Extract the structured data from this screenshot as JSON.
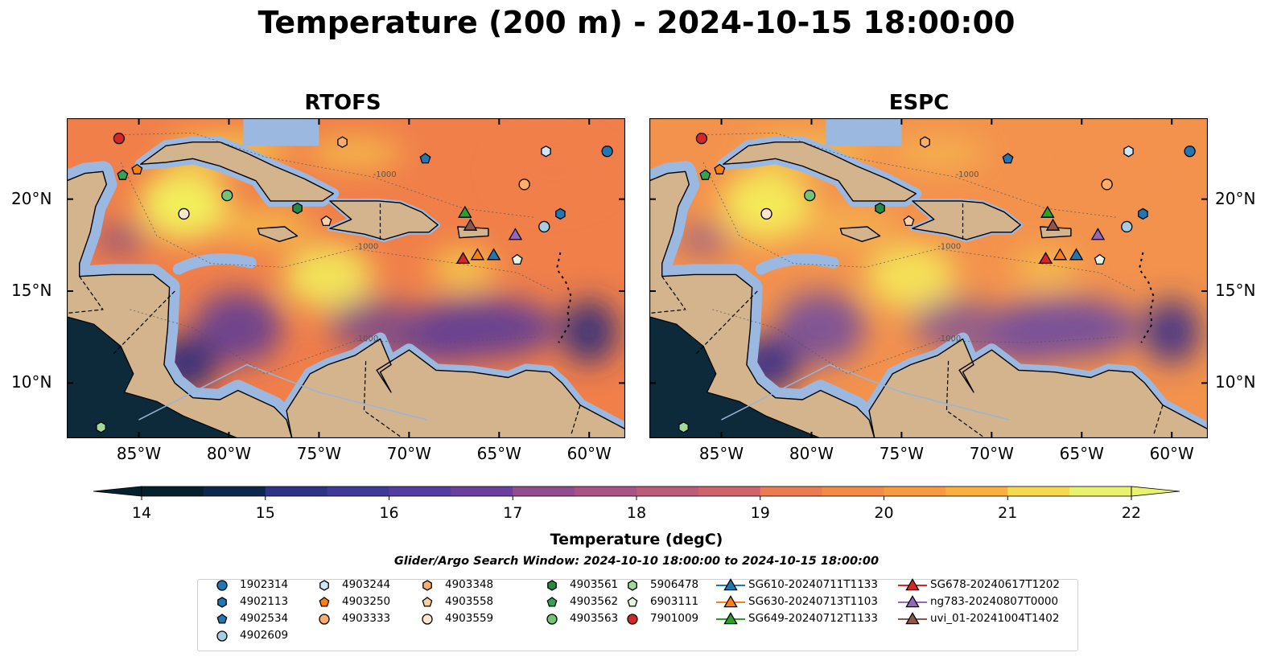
{
  "title": "Temperature (200 m) - 2024-10-15 18:00:00",
  "panels": [
    {
      "title": "RTOFS",
      "palette": {
        "base": "#f07f4a",
        "warm": "#f6d64a",
        "hot": "#f2f45c",
        "cool": "#5b3b98",
        "cold": "#2f2b7a"
      }
    },
    {
      "title": "ESPC",
      "palette": {
        "base": "#f3924d",
        "warm": "#f5c34e",
        "hot": "#f4ee5a",
        "cool": "#6d4aa0",
        "cold": "#3a3088"
      }
    }
  ],
  "map": {
    "land_color": "#d3b48c",
    "shelf_color": "#9bb8e0",
    "pacific_color": "#0d2a3a",
    "lon_labels": [
      "85°W",
      "80°W",
      "75°W",
      "70°W",
      "65°W",
      "60°W"
    ],
    "lat_labels": [
      "20°N",
      "15°N",
      "10°N"
    ],
    "contour_label": "-1000"
  },
  "colorbar": {
    "title": "Temperature (degC)",
    "ticks": [
      "14",
      "15",
      "16",
      "17",
      "18",
      "19",
      "20",
      "21",
      "22"
    ],
    "colors": [
      "#06202e",
      "#0d2650",
      "#1f2c6e",
      "#2e3388",
      "#3e3a98",
      "#533da2",
      "#6a3f9e",
      "#7f4699",
      "#934d8f",
      "#a85385",
      "#bd5b7a",
      "#d0626c",
      "#de6f5d",
      "#ea7c50",
      "#f38a45",
      "#f89b3e",
      "#faaf3e",
      "#fbc544",
      "#f7d94e",
      "#e8f26a"
    ]
  },
  "colorbar_title": "Temperature (degC)",
  "search_window": "Glider/Argo Search Window: 2024-10-10 18:00:00 to 2024-10-15 18:00:00",
  "platforms": [
    {
      "label": "1902314",
      "marker": "circle",
      "color": "#1f77b4",
      "lon": -59.0,
      "lat": 22.6
    },
    {
      "label": "4902113",
      "marker": "hexagon",
      "color": "#1f77b4",
      "lon": -61.6,
      "lat": 19.2
    },
    {
      "label": "4902534",
      "marker": "pentagon",
      "color": "#1f77b4",
      "lon": -69.1,
      "lat": 22.2
    },
    {
      "label": "4902609",
      "marker": "circle",
      "color": "#a6cee3",
      "lon": -62.5,
      "lat": 18.5
    },
    {
      "label": "4903244",
      "marker": "hexagon",
      "color": "#cfe6f7",
      "lon": -62.4,
      "lat": 22.6
    },
    {
      "label": "4903250",
      "marker": "pentagon",
      "color": "#ff7f0e",
      "lon": -85.1,
      "lat": 21.6
    },
    {
      "label": "4903333",
      "marker": "circle",
      "color": "#fdae6b",
      "lon": -63.6,
      "lat": 20.8
    },
    {
      "label": "4903348",
      "marker": "hexagon",
      "color": "#fdae6b",
      "lon": -73.7,
      "lat": 23.1
    },
    {
      "label": "4903558",
      "marker": "pentagon",
      "color": "#fdd0a2",
      "lon": -74.6,
      "lat": 18.8
    },
    {
      "label": "4903559",
      "marker": "circle",
      "color": "#fee6ce",
      "lon": -82.5,
      "lat": 19.2
    },
    {
      "label": "4903561",
      "marker": "hexagon",
      "color": "#238b45",
      "lon": -76.2,
      "lat": 19.5
    },
    {
      "label": "4903562",
      "marker": "pentagon",
      "color": "#31a354",
      "lon": -85.9,
      "lat": 21.3
    },
    {
      "label": "4903563",
      "marker": "circle",
      "color": "#74c476",
      "lon": -80.1,
      "lat": 20.2
    },
    {
      "label": "5906478",
      "marker": "hexagon",
      "color": "#a1d99b",
      "lon": -87.1,
      "lat": 7.6
    },
    {
      "label": "6903111",
      "marker": "pentagon",
      "color": "#e5f5e0",
      "lon": -64.0,
      "lat": 16.7
    },
    {
      "label": "7901009",
      "marker": "circle",
      "color": "#d62728",
      "lon": -86.1,
      "lat": 23.3
    },
    {
      "label": "SG610-20240711T1133",
      "marker": "triangle",
      "color": "#1f77b4",
      "lon": -65.3,
      "lat": 17.0
    },
    {
      "label": "SG630-20240713T1103",
      "marker": "triangle",
      "color": "#ff7f0e",
      "lon": -66.2,
      "lat": 17.0
    },
    {
      "label": "SG649-20240712T1133",
      "marker": "triangle",
      "color": "#2ca02c",
      "lon": -66.9,
      "lat": 19.3
    },
    {
      "label": "SG678-20240617T1202",
      "marker": "triangle",
      "color": "#d62728",
      "lon": -67.0,
      "lat": 16.8
    },
    {
      "label": "ng783-20240807T0000",
      "marker": "triangle",
      "color": "#9467bd",
      "lon": -64.1,
      "lat": 18.1
    },
    {
      "label": "uvi_01-20241004T1402",
      "marker": "triangle",
      "color": "#8c564b",
      "lon": -66.6,
      "lat": 18.6
    }
  ]
}
